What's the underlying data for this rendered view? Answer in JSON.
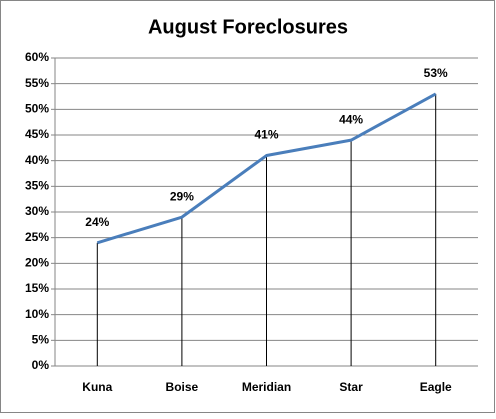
{
  "chart_data": {
    "type": "line",
    "title": "August Foreclosures",
    "categories": [
      "Kuna",
      "Boise",
      "Meridian",
      "Star",
      "Eagle"
    ],
    "values": [
      24,
      29,
      41,
      44,
      53
    ],
    "value_labels": [
      "24%",
      "29%",
      "41%",
      "44%",
      "53%"
    ],
    "color": "#4a7ebb",
    "ylim": [
      0,
      60
    ],
    "yticks": [
      {
        "value": 0,
        "label": "0%"
      },
      {
        "value": 5,
        "label": "5%"
      },
      {
        "value": 10,
        "label": "10%"
      },
      {
        "value": 15,
        "label": "15%"
      },
      {
        "value": 20,
        "label": "20%"
      },
      {
        "value": 25,
        "label": "25%"
      },
      {
        "value": 30,
        "label": "30%"
      },
      {
        "value": 35,
        "label": "35%"
      },
      {
        "value": 40,
        "label": "40%"
      },
      {
        "value": 45,
        "label": "45%"
      },
      {
        "value": 50,
        "label": "50%"
      },
      {
        "value": 55,
        "label": "55%"
      },
      {
        "value": 60,
        "label": "60%"
      }
    ],
    "grid": true,
    "drop_lines": true
  }
}
